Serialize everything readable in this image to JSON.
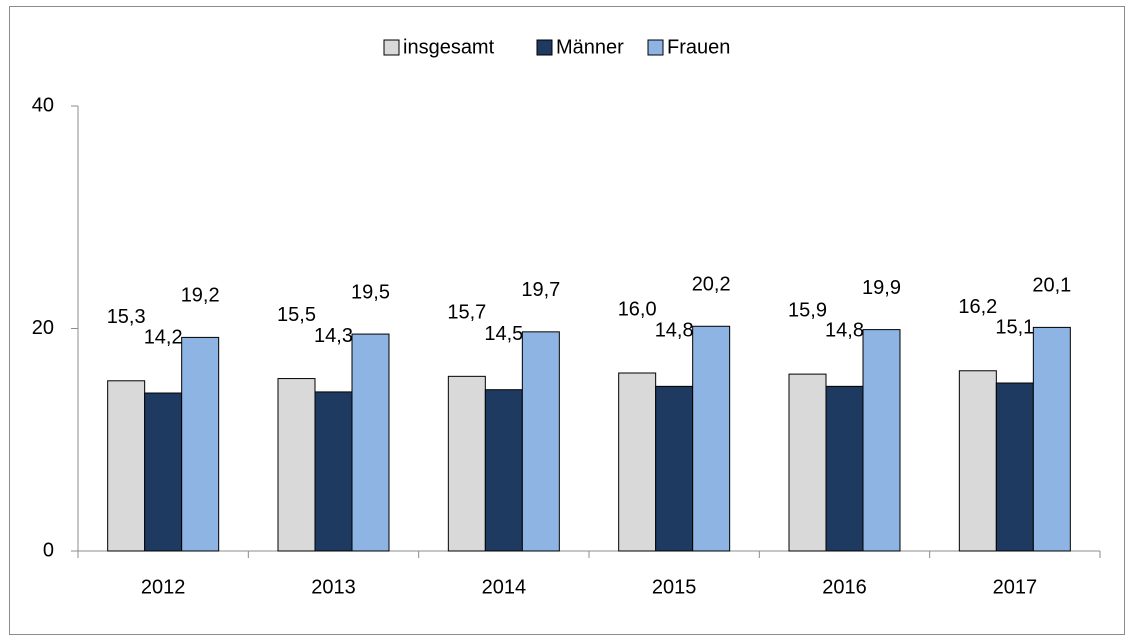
{
  "chart_data": {
    "type": "bar",
    "categories": [
      "2012",
      "2013",
      "2014",
      "2015",
      "2016",
      "2017"
    ],
    "series": [
      {
        "name": "insgesamt",
        "color": "#d9d9d9",
        "values": [
          15.3,
          15.5,
          15.7,
          16.0,
          15.9,
          16.2
        ],
        "value_labels": [
          "15,3",
          "15,5",
          "15,7",
          "16,0",
          "15,9",
          "16,2"
        ]
      },
      {
        "name": "Männer",
        "color": "#1f3a60",
        "values": [
          14.2,
          14.3,
          14.5,
          14.8,
          14.8,
          15.1
        ],
        "value_labels": [
          "14,2",
          "14,3",
          "14,5",
          "14,8",
          "14,8",
          "15,1"
        ]
      },
      {
        "name": "Frauen",
        "color": "#8db4e2",
        "values": [
          19.2,
          19.5,
          19.7,
          20.2,
          19.9,
          20.1
        ],
        "value_labels": [
          "19,2",
          "19,5",
          "19,7",
          "20,2",
          "19,9",
          "20,1"
        ]
      }
    ],
    "ylim": [
      0,
      40
    ],
    "yticks": [
      0,
      20,
      40
    ],
    "legend": "top"
  }
}
